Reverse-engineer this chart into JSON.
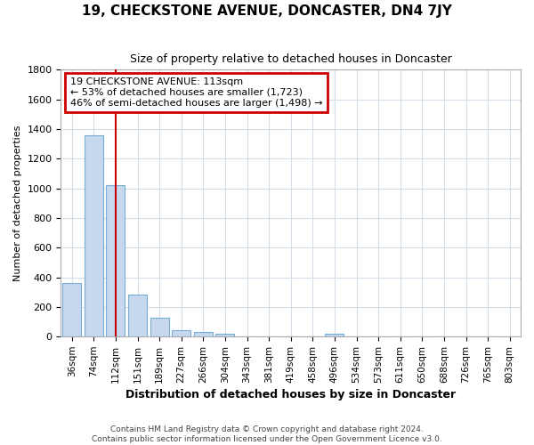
{
  "title": "19, CHECKSTONE AVENUE, DONCASTER, DN4 7JY",
  "subtitle": "Size of property relative to detached houses in Doncaster",
  "xlabel": "Distribution of detached houses by size in Doncaster",
  "ylabel": "Number of detached properties",
  "categories": [
    "36sqm",
    "74sqm",
    "112sqm",
    "151sqm",
    "189sqm",
    "227sqm",
    "266sqm",
    "304sqm",
    "343sqm",
    "381sqm",
    "419sqm",
    "458sqm",
    "496sqm",
    "534sqm",
    "573sqm",
    "611sqm",
    "650sqm",
    "688sqm",
    "726sqm",
    "765sqm",
    "803sqm"
  ],
  "values": [
    360,
    1360,
    1020,
    285,
    130,
    45,
    30,
    20,
    0,
    0,
    0,
    0,
    20,
    0,
    0,
    0,
    0,
    0,
    0,
    0,
    0
  ],
  "bar_color": "#c5d8ee",
  "bar_edge_color": "#7aadd4",
  "highlight_index": 2,
  "highlight_line_color": "#cc0000",
  "annotation_line1": "19 CHECKSTONE AVENUE: 113sqm",
  "annotation_line2": "← 53% of detached houses are smaller (1,723)",
  "annotation_line3": "46% of semi-detached houses are larger (1,498) →",
  "annotation_box_facecolor": "#ffffff",
  "annotation_box_edgecolor": "#cc0000",
  "ylim": [
    0,
    1800
  ],
  "yticks": [
    0,
    200,
    400,
    600,
    800,
    1000,
    1200,
    1400,
    1600,
    1800
  ],
  "footer": "Contains HM Land Registry data © Crown copyright and database right 2024.\nContains public sector information licensed under the Open Government Licence v3.0.",
  "bg_color": "#ffffff",
  "grid_color": "#d5dde8"
}
